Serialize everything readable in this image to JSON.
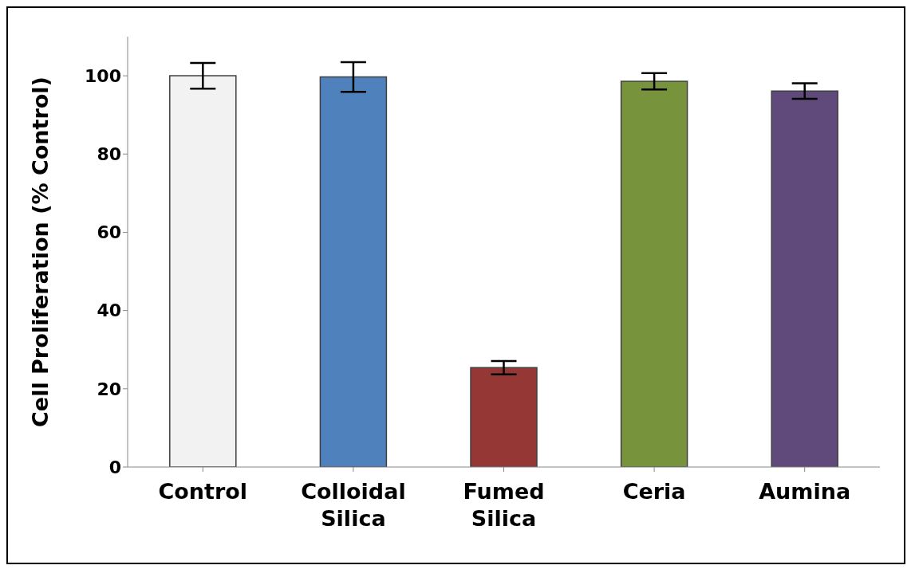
{
  "chart_data": {
    "type": "bar",
    "ylabel": "Cell Proliferation (% Control)",
    "categories": [
      "Control",
      "Colloidal Silica",
      "Fumed Silica",
      "Ceria",
      "Aumina"
    ],
    "values": [
      100,
      99.7,
      25.4,
      98.6,
      96.1
    ],
    "colors": [
      "#f2f2f2",
      "#4f81bd",
      "#953735",
      "#77933c",
      "#604a7b"
    ],
    "errors": [
      3.3,
      3.8,
      1.7,
      2.1,
      2
    ],
    "ylim": [
      0,
      110
    ],
    "yticks": [
      0,
      20,
      40,
      60,
      80,
      100
    ],
    "grid": false,
    "legend": false
  }
}
